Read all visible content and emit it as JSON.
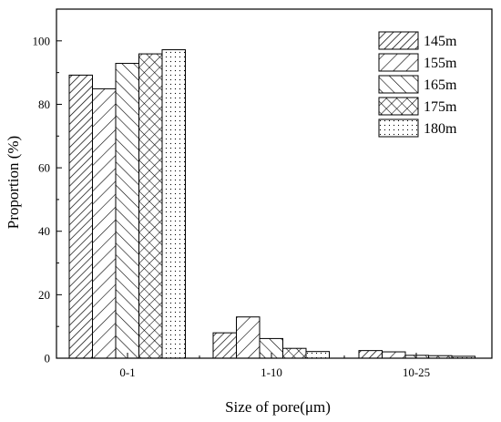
{
  "chart_data": {
    "type": "bar",
    "title": "",
    "xlabel": "Size of pore(μm)",
    "ylabel": "Proportion (%)",
    "ylim": [
      0,
      110
    ],
    "yticks": [
      0,
      20,
      40,
      60,
      80,
      100
    ],
    "categories": [
      "0-1",
      "1-10",
      "10-25"
    ],
    "series": [
      {
        "name": "145m",
        "values": [
          89.2,
          8.0,
          2.4
        ],
        "pattern": "dense-forward-hatch"
      },
      {
        "name": "155m",
        "values": [
          84.9,
          13.0,
          2.0
        ],
        "pattern": "sparse-forward-hatch"
      },
      {
        "name": "165m",
        "values": [
          92.9,
          6.2,
          0.9
        ],
        "pattern": "back-hatch"
      },
      {
        "name": "175m",
        "values": [
          95.9,
          3.1,
          0.8
        ],
        "pattern": "crosshatch"
      },
      {
        "name": "180m",
        "values": [
          97.2,
          2.1,
          0.6
        ],
        "pattern": "dots"
      }
    ],
    "legend_position": "top-right",
    "grid": false
  }
}
